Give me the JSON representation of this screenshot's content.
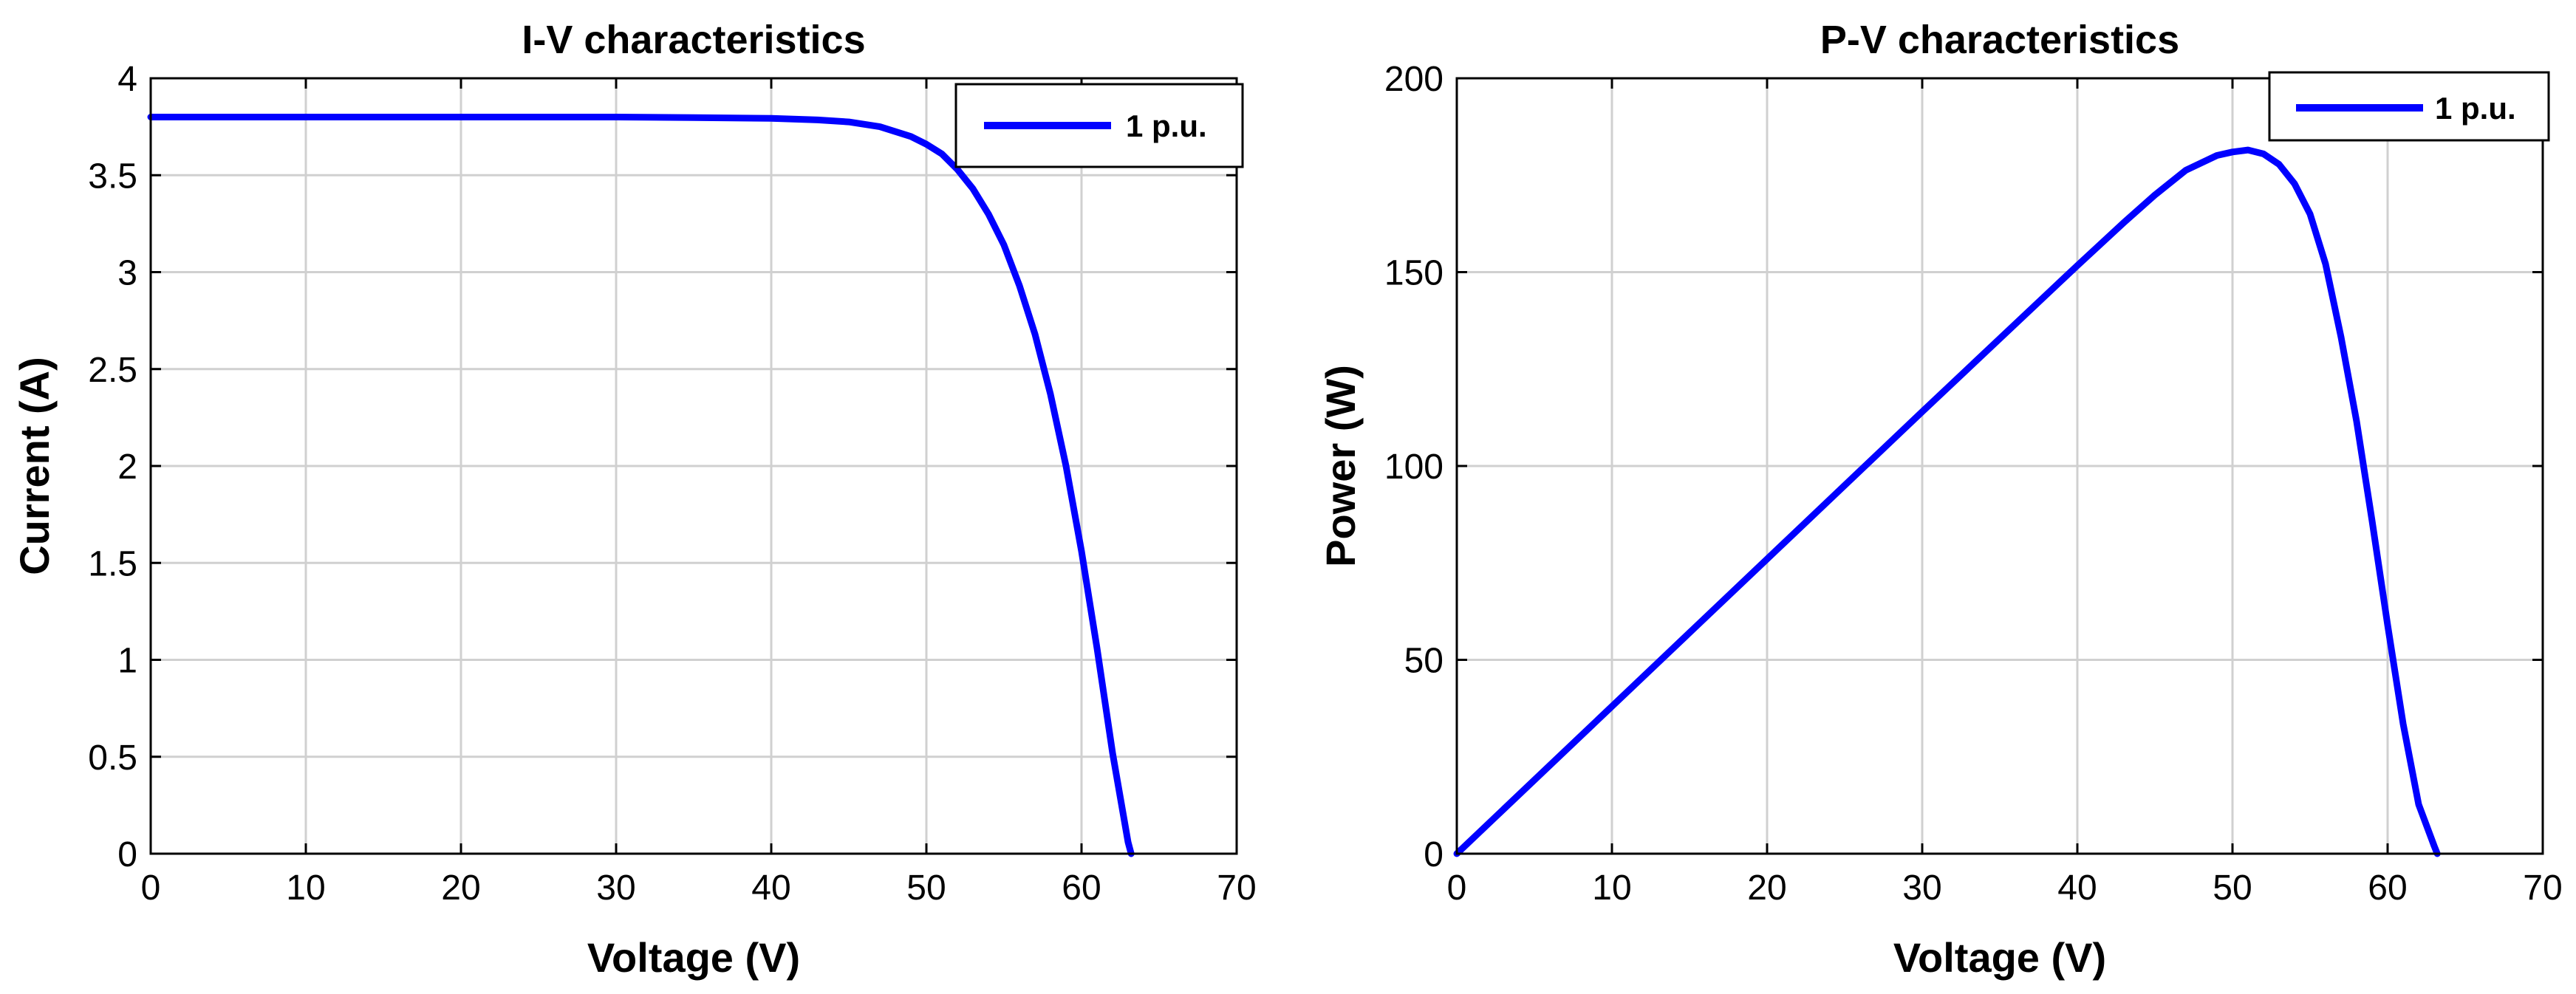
{
  "chart_data": [
    {
      "type": "line",
      "title": "I-V characteristics",
      "xlabel": "Voltage (V)",
      "ylabel": "Current (A)",
      "xlim": [
        0,
        70
      ],
      "ylim": [
        0,
        4
      ],
      "xticks": [
        0,
        10,
        20,
        30,
        40,
        50,
        60,
        70
      ],
      "yticks": [
        0,
        0.5,
        1,
        1.5,
        2,
        2.5,
        3,
        3.5,
        4
      ],
      "xtick_labels": [
        "0",
        "10",
        "20",
        "30",
        "40",
        "50",
        "60",
        "70"
      ],
      "ytick_labels": [
        "0",
        "0.5",
        "1",
        "1.5",
        "2",
        "2.5",
        "3",
        "3.5",
        "4"
      ],
      "grid": true,
      "legend": {
        "position": "top-right",
        "entries": [
          "1 p.u."
        ]
      },
      "series": [
        {
          "name": "1 p.u.",
          "color": "#0000ff",
          "x": [
            0,
            10,
            20,
            30,
            35,
            40,
            43,
            45,
            47,
            49,
            50,
            51,
            52,
            53,
            54,
            55,
            56,
            57,
            58,
            59,
            60,
            61,
            62,
            63,
            63.2
          ],
          "y": [
            3.8,
            3.8,
            3.8,
            3.8,
            3.797,
            3.793,
            3.785,
            3.775,
            3.75,
            3.7,
            3.66,
            3.61,
            3.53,
            3.43,
            3.3,
            3.14,
            2.93,
            2.68,
            2.37,
            2.0,
            1.56,
            1.06,
            0.52,
            0.06,
            0
          ]
        }
      ]
    },
    {
      "type": "line",
      "title": "P-V characteristics",
      "xlabel": "Voltage (V)",
      "ylabel": "Power (W)",
      "xlim": [
        0,
        70
      ],
      "ylim": [
        0,
        200
      ],
      "xticks": [
        0,
        10,
        20,
        30,
        40,
        50,
        60,
        70
      ],
      "yticks": [
        0,
        50,
        100,
        150,
        200
      ],
      "xtick_labels": [
        "0",
        "10",
        "20",
        "30",
        "40",
        "50",
        "60",
        "70"
      ],
      "ytick_labels": [
        "0",
        "50",
        "100",
        "150",
        "200"
      ],
      "grid": true,
      "legend": {
        "position": "top-right",
        "entries": [
          "1 p.u."
        ]
      },
      "series": [
        {
          "name": "1 p.u.",
          "color": "#0000ff",
          "x": [
            0,
            10,
            20,
            30,
            40,
            43,
            45,
            47,
            49,
            50,
            51,
            52,
            53,
            54,
            55,
            56,
            57,
            58,
            59,
            60,
            61,
            62,
            63,
            63.2
          ],
          "y": [
            0,
            38,
            76,
            114,
            151.7,
            162.8,
            169.9,
            176.3,
            180.1,
            181.0,
            181.5,
            180.5,
            177.8,
            172.8,
            165.0,
            152.1,
            133.2,
            111.5,
            85.8,
            59.0,
            33.5,
            12.7,
            2.0,
            0
          ]
        }
      ]
    }
  ]
}
